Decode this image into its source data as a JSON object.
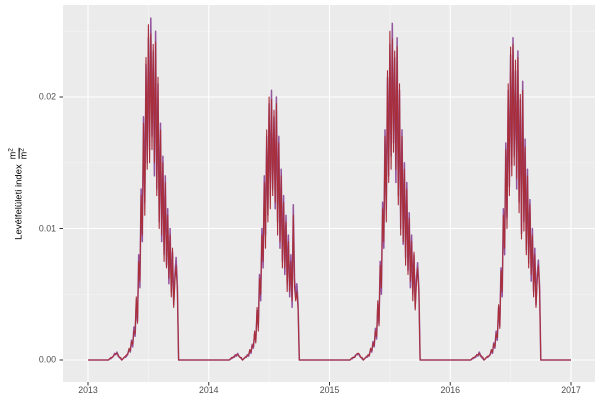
{
  "figure": {
    "background": "#FFFFFF",
    "panel_background": "#EBEBEB",
    "grid_major_color": "#FFFFFF",
    "grid_minor_color": "#F5F5F5",
    "tick_mark_color": "#333333",
    "tick_label_color": "#4D4D4D"
  },
  "y_axis": {
    "title_text": "Levélfelületi index",
    "frac_numerator_base": "m",
    "frac_numerator_exp": "2",
    "frac_denominator_base": "m",
    "frac_denominator_exp": "2",
    "tick_labels": [
      "0.00",
      "0.01",
      "0.02"
    ],
    "tick_values": [
      0,
      0.01,
      0.02
    ],
    "minor_values": [
      0.005,
      0.015,
      0.025
    ]
  },
  "x_axis": {
    "tick_labels": [
      "2013",
      "2014",
      "2015",
      "2016",
      "2017"
    ],
    "tick_values": [
      2013,
      2014,
      2015,
      2016,
      2017
    ],
    "minor_values": [
      2013.5,
      2014.5,
      2015.5,
      2016.5
    ]
  },
  "chart_data": {
    "type": "line",
    "title": "",
    "xlabel": "",
    "ylabel": "Levélfelületi index m²/m²",
    "legend": "none",
    "grid": "on",
    "xlim": [
      2012.79,
      2017.2
    ],
    "ylim": [
      -0.0017,
      0.027
    ],
    "x_domain_start": 2013.0,
    "x_domain_end": 2017.0,
    "value_scale": 0.0001,
    "series": [
      {
        "id": "purple",
        "color": "#94559E",
        "stroke_width": 1.5
      },
      {
        "id": "red",
        "color": "#A82E3A",
        "stroke_width": 1.1
      }
    ],
    "season_peaks": {
      "2013": 0.026,
      "2014": 0.0205,
      "2015": 0.0256,
      "2016": 0.0245
    },
    "seasons": [
      {
        "year": 2013,
        "u_start": 0.16,
        "u_step": 0.01,
        "purple": [
          0,
          0,
          1,
          1,
          2,
          3,
          5,
          4,
          6,
          3,
          2,
          1,
          0,
          1,
          2,
          2,
          3,
          5,
          8,
          6,
          15,
          10,
          25,
          18,
          45,
          30,
          80,
          55,
          130,
          90,
          185,
          120,
          225,
          150,
          245,
          160,
          260,
          170,
          235,
          140,
          250,
          130,
          210,
          105,
          180,
          90,
          155,
          80,
          140,
          72,
          115,
          58,
          100,
          52,
          82,
          42,
          65,
          78,
          56,
          0
        ],
        "red": [
          0,
          0,
          1,
          2,
          2,
          3,
          4,
          5,
          5,
          4,
          2,
          2,
          0,
          1,
          2,
          3,
          4,
          4,
          9,
          7,
          14,
          12,
          22,
          20,
          48,
          28,
          75,
          60,
          125,
          95,
          180,
          110,
          230,
          145,
          255,
          150,
          248,
          160,
          240,
          150,
          242,
          125,
          215,
          100,
          175,
          95,
          150,
          75,
          135,
          70,
          110,
          62,
          95,
          48,
          85,
          40,
          60,
          72,
          52,
          0
        ]
      },
      {
        "year": 2014,
        "u_start": 0.16,
        "u_step": 0.01,
        "purple": [
          0,
          0,
          1,
          1,
          2,
          2,
          4,
          3,
          5,
          3,
          2,
          1,
          0,
          1,
          2,
          2,
          4,
          3,
          7,
          5,
          12,
          9,
          20,
          15,
          38,
          25,
          65,
          45,
          100,
          70,
          140,
          95,
          170,
          110,
          195,
          125,
          205,
          130,
          185,
          115,
          200,
          105,
          170,
          85,
          145,
          75,
          125,
          65,
          110,
          58,
          95,
          48,
          80,
          40,
          118,
          62,
          50,
          58,
          42,
          0
        ],
        "red": [
          0,
          0,
          1,
          2,
          2,
          3,
          3,
          4,
          4,
          3,
          2,
          2,
          0,
          1,
          2,
          3,
          3,
          4,
          8,
          6,
          11,
          10,
          22,
          13,
          40,
          22,
          62,
          50,
          95,
          75,
          135,
          85,
          175,
          105,
          200,
          115,
          198,
          125,
          190,
          120,
          195,
          95,
          165,
          90,
          140,
          70,
          120,
          70,
          105,
          52,
          90,
          52,
          75,
          45,
          110,
          55,
          45,
          52,
          38,
          0
        ]
      },
      {
        "year": 2015,
        "u_start": 0.16,
        "u_step": 0.01,
        "purple": [
          0,
          0,
          1,
          1,
          2,
          3,
          4,
          4,
          5,
          3,
          2,
          1,
          0,
          1,
          2,
          2,
          3,
          4,
          8,
          6,
          14,
          10,
          24,
          16,
          42,
          28,
          75,
          50,
          120,
          85,
          175,
          115,
          215,
          140,
          240,
          155,
          256,
          165,
          230,
          135,
          245,
          125,
          205,
          100,
          175,
          88,
          150,
          78,
          135,
          68,
          112,
          55,
          95,
          50,
          80,
          40,
          62,
          74,
          54,
          0
        ],
        "red": [
          0,
          0,
          1,
          2,
          2,
          2,
          4,
          5,
          5,
          4,
          2,
          2,
          0,
          1,
          2,
          3,
          4,
          3,
          9,
          7,
          13,
          11,
          22,
          18,
          45,
          26,
          72,
          55,
          115,
          90,
          170,
          105,
          220,
          135,
          250,
          145,
          244,
          158,
          235,
          145,
          238,
          118,
          210,
          95,
          170,
          90,
          145,
          72,
          130,
          65,
          108,
          60,
          90,
          45,
          82,
          38,
          58,
          70,
          50,
          0
        ]
      },
      {
        "year": 2016,
        "u_start": 0.16,
        "u_step": 0.01,
        "purple": [
          0,
          0,
          1,
          1,
          2,
          2,
          4,
          3,
          6,
          4,
          2,
          1,
          0,
          1,
          2,
          2,
          3,
          4,
          7,
          5,
          13,
          9,
          22,
          15,
          40,
          26,
          70,
          48,
          115,
          80,
          165,
          108,
          205,
          132,
          232,
          148,
          245,
          155,
          220,
          130,
          235,
          120,
          198,
          96,
          212,
          105,
          168,
          84,
          145,
          74,
          122,
          60,
          100,
          52,
          85,
          42,
          65,
          76,
          55,
          0
        ],
        "red": [
          0,
          0,
          1,
          2,
          2,
          3,
          4,
          4,
          5,
          3,
          3,
          2,
          0,
          1,
          2,
          3,
          3,
          4,
          8,
          6,
          12,
          10,
          20,
          17,
          42,
          24,
          68,
          52,
          110,
          85,
          160,
          100,
          210,
          125,
          238,
          140,
          240,
          148,
          228,
          138,
          230,
          112,
          202,
          92,
          205,
          98,
          162,
          80,
          140,
          70,
          118,
          65,
          95,
          48,
          80,
          40,
          60,
          72,
          52,
          0
        ]
      }
    ]
  }
}
